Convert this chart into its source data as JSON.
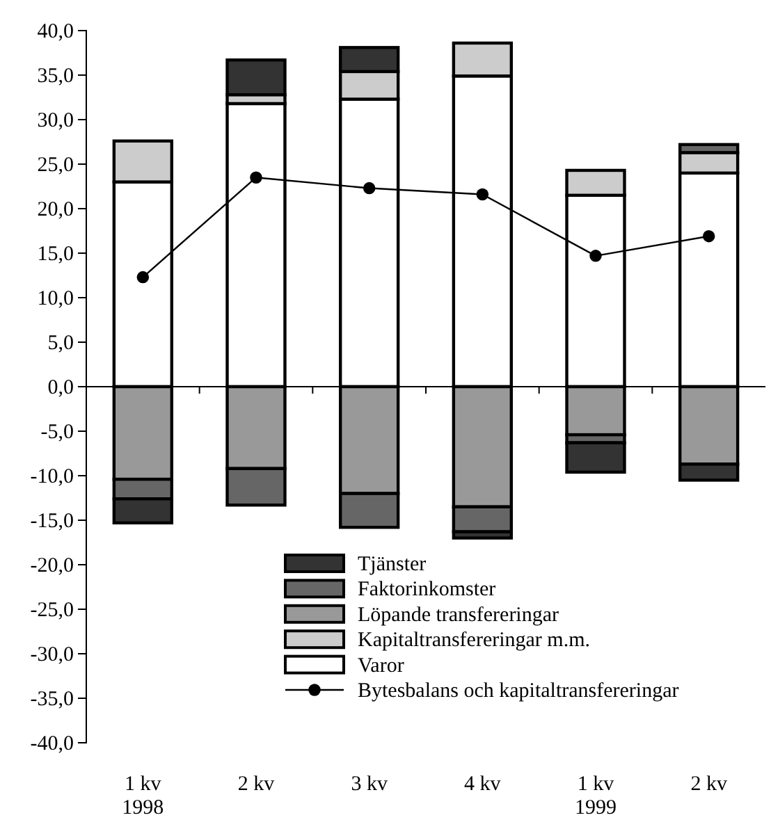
{
  "chart_data": {
    "type": "bar",
    "stacked": true,
    "categories": [
      "1 kv\n1998",
      "2 kv",
      "3 kv",
      "4 kv",
      "1 kv\n1999",
      "2 kv"
    ],
    "series": [
      {
        "name": "Varor",
        "color": "#ffffff",
        "values": [
          23.0,
          31.8,
          32.3,
          34.9,
          21.5,
          24.0
        ]
      },
      {
        "name": "Kapitaltransfereringar m.m.",
        "color": "#cccccc",
        "values": [
          4.6,
          1.0,
          3.1,
          3.7,
          2.8,
          2.3
        ]
      },
      {
        "name": "Löpande transfereringar",
        "color": "#999999",
        "values": [
          -10.4,
          -9.2,
          -12.0,
          -13.5,
          -5.4,
          -8.7
        ]
      },
      {
        "name": "Faktorinkomster",
        "color": "#666666",
        "values": [
          -2.2,
          -4.1,
          -3.8,
          -2.8,
          -0.9,
          0.9
        ]
      },
      {
        "name": "Tjänster",
        "color": "#333333",
        "values": [
          -2.7,
          3.9,
          2.7,
          -0.7,
          -3.3,
          -1.8
        ]
      },
      {
        "name": "Bytesbalans och kapitaltransfereringar",
        "type": "line",
        "color": "#000000",
        "marker": "circle",
        "values": [
          12.3,
          23.5,
          22.3,
          21.6,
          14.7,
          16.9
        ]
      }
    ],
    "ylim": [
      -40,
      40
    ],
    "yticks": [
      {
        "value": -40,
        "label": "-40,0"
      },
      {
        "value": -35,
        "label": "-35,0"
      },
      {
        "value": -30,
        "label": "-30,0"
      },
      {
        "value": -25,
        "label": "-25,0"
      },
      {
        "value": -20,
        "label": "-20,0"
      },
      {
        "value": -15,
        "label": "-15,0"
      },
      {
        "value": -10,
        "label": "-10,0"
      },
      {
        "value": -5,
        "label": "-5,0"
      },
      {
        "value": 0,
        "label": "0,0"
      },
      {
        "value": 5,
        "label": "5,0"
      },
      {
        "value": 10,
        "label": "10,0"
      },
      {
        "value": 15,
        "label": "15,0"
      },
      {
        "value": 20,
        "label": "20,0"
      },
      {
        "value": 25,
        "label": "25,0"
      },
      {
        "value": 30,
        "label": "30,0"
      },
      {
        "value": 35,
        "label": "35,0"
      },
      {
        "value": 40,
        "label": "40,0"
      }
    ],
    "legend": "bottom"
  }
}
